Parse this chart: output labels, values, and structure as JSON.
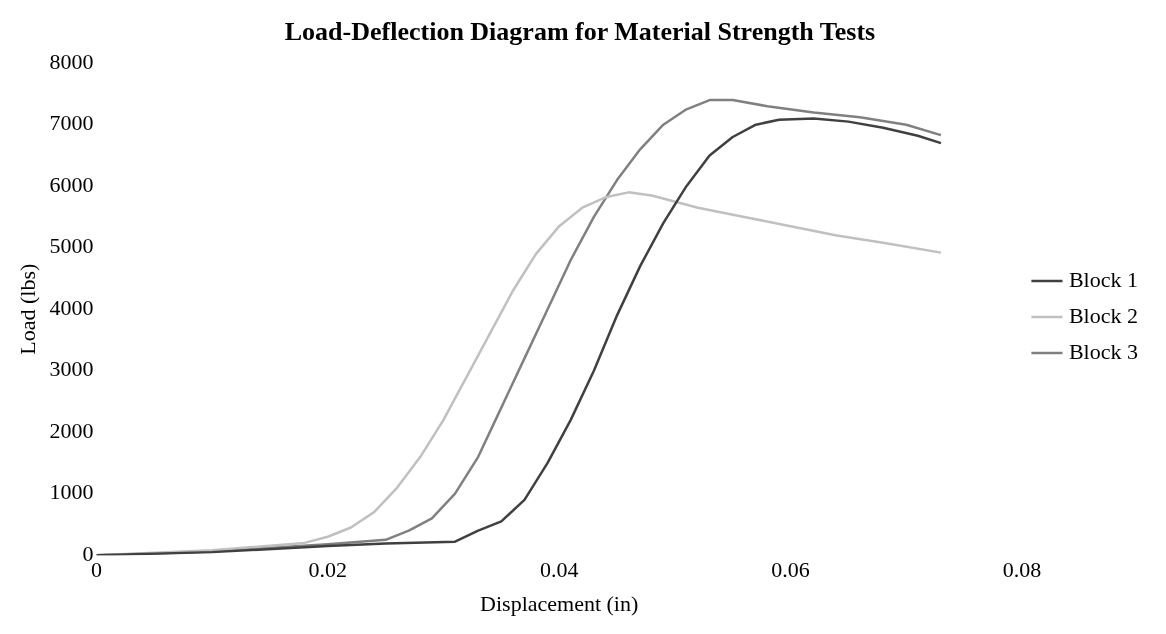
{
  "chart_data": {
    "type": "line",
    "title": "Load-Deflection Diagram for Material Strength Tests",
    "xlabel": "Displacement (in)",
    "ylabel": "Load (lbs)",
    "xlim": [
      0,
      0.08
    ],
    "xticks": [
      0,
      0.02,
      0.04,
      0.06,
      0.08
    ],
    "ylim": [
      0,
      8000
    ],
    "yticks": [
      0,
      1000,
      2000,
      3000,
      4000,
      5000,
      6000,
      7000,
      8000
    ],
    "grid": false,
    "legend": "right",
    "marker": "none",
    "line_style": "solid",
    "series": [
      {
        "name": "Block 1",
        "color": "#404040",
        "x": [
          0,
          0.01,
          0.02,
          0.025,
          0.031,
          0.033,
          0.035,
          0.037,
          0.039,
          0.041,
          0.043,
          0.045,
          0.047,
          0.049,
          0.051,
          0.053,
          0.055,
          0.057,
          0.059,
          0.062,
          0.065,
          0.068,
          0.071,
          0.073
        ],
        "values": [
          0,
          50,
          150,
          190,
          220,
          400,
          550,
          900,
          1500,
          2200,
          3000,
          3900,
          4700,
          5400,
          6000,
          6500,
          6800,
          7000,
          7080,
          7100,
          7050,
          6950,
          6820,
          6700
        ]
      },
      {
        "name": "Block 2",
        "color": "#c0c0c0",
        "x": [
          0,
          0.01,
          0.018,
          0.02,
          0.022,
          0.024,
          0.026,
          0.028,
          0.03,
          0.032,
          0.034,
          0.036,
          0.038,
          0.04,
          0.042,
          0.044,
          0.046,
          0.048,
          0.052,
          0.056,
          0.06,
          0.064,
          0.068,
          0.073
        ],
        "values": [
          0,
          80,
          200,
          300,
          450,
          700,
          1100,
          1600,
          2200,
          2900,
          3600,
          4300,
          4900,
          5350,
          5650,
          5820,
          5900,
          5850,
          5650,
          5500,
          5350,
          5200,
          5080,
          4920
        ]
      },
      {
        "name": "Block 3",
        "color": "#808080",
        "x": [
          0,
          0.01,
          0.02,
          0.025,
          0.027,
          0.029,
          0.031,
          0.033,
          0.035,
          0.037,
          0.039,
          0.041,
          0.043,
          0.045,
          0.047,
          0.049,
          0.051,
          0.053,
          0.055,
          0.058,
          0.062,
          0.066,
          0.07,
          0.073
        ],
        "values": [
          0,
          60,
          180,
          250,
          400,
          600,
          1000,
          1600,
          2400,
          3200,
          4000,
          4800,
          5500,
          6100,
          6600,
          7000,
          7250,
          7400,
          7400,
          7300,
          7200,
          7120,
          7000,
          6830
        ]
      }
    ]
  }
}
